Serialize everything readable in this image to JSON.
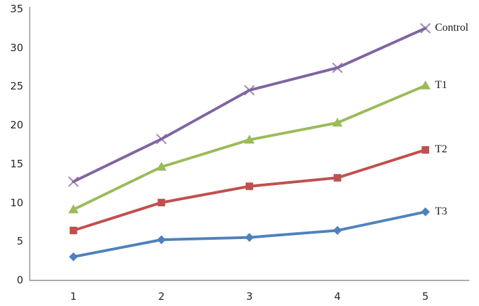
{
  "chart_data": {
    "type": "line",
    "title": "",
    "xlabel": "",
    "ylabel": "",
    "x": [
      1,
      2,
      3,
      4,
      5
    ],
    "x_tick_labels": [
      "1",
      "2",
      "3",
      "4",
      "5"
    ],
    "y_ticks": [
      0,
      5,
      10,
      15,
      20,
      25,
      30,
      35
    ],
    "y_tick_labels": [
      "0",
      "5",
      "10",
      "15",
      "20",
      "25",
      "30",
      "35"
    ],
    "ylim": [
      0,
      35
    ],
    "grid": false,
    "legend_position": "right-of-last-point",
    "series": [
      {
        "name": "T3",
        "color": "#4F81BD",
        "marker": "diamond",
        "values": [
          3.0,
          5.2,
          5.5,
          6.4,
          8.8
        ]
      },
      {
        "name": "T2",
        "color": "#C0504D",
        "marker": "square",
        "values": [
          6.4,
          10.0,
          12.1,
          13.2,
          16.8
        ]
      },
      {
        "name": "T1",
        "color": "#9BBB59",
        "marker": "triangle",
        "values": [
          9.1,
          14.6,
          18.1,
          20.3,
          25.1
        ]
      },
      {
        "name": "Control",
        "color": "#8064A2",
        "marker": "x-cross",
        "values": [
          12.7,
          18.2,
          24.5,
          27.4,
          32.5
        ]
      }
    ],
    "colors": {
      "axis": "#8C8C8C",
      "tick_text": "#262626",
      "label_text": "#1A1A1A",
      "background": "#FFFFFF"
    }
  }
}
